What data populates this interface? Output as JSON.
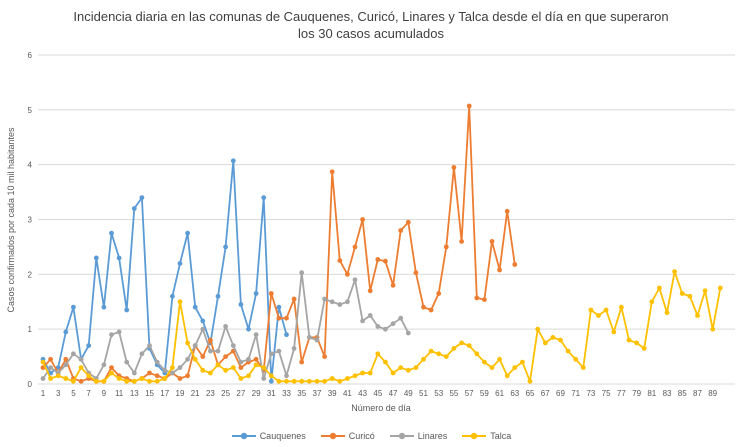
{
  "title": {
    "line1": "Incidencia diaria en las comunas de Cauquenes, Curicó, Linares y Talca desde el día en que superaron",
    "line2": "los 30 casos acumulados"
  },
  "axes": {
    "x_label": "Número de día",
    "y_label": "Casos confirmados por cada 10 mil habitantes",
    "y_ticks": [
      0,
      1,
      2,
      3,
      4,
      5,
      6
    ],
    "x_tick_days": [
      1,
      3,
      5,
      7,
      9,
      11,
      13,
      15,
      17,
      19,
      21,
      23,
      25,
      27,
      29,
      31,
      33,
      35,
      37,
      39,
      41,
      43,
      45,
      47,
      49,
      51,
      53,
      55,
      57,
      59,
      61,
      63,
      65,
      67,
      69,
      71,
      73,
      75,
      77,
      79,
      81,
      83,
      85,
      87,
      89
    ]
  },
  "colors": {
    "cauquenes": "#5B9BD5",
    "curico": "#ED7D31",
    "linares": "#A5A5A5",
    "talca": "#FFC000",
    "grid": "#d9d9d9",
    "tick_text": "#595959"
  },
  "chart_data": {
    "type": "line",
    "title": "Incidencia diaria en las comunas de Cauquenes, Curicó, Linares y Talca desde el día en que superaron los 30 casos acumulados",
    "xlabel": "Número de día",
    "ylabel": "Casos confirmados por cada 10 mil habitantes",
    "x_start": 1,
    "xlim": [
      1,
      90
    ],
    "ylim": [
      0,
      6
    ],
    "grid": "horizontal",
    "legend_position": "bottom",
    "marker": "circle",
    "series": [
      {
        "name": "Cauquenes",
        "color": "#5B9BD5",
        "values": [
          0.45,
          0.2,
          0.3,
          0.95,
          1.4,
          0.45,
          0.7,
          2.3,
          1.4,
          2.75,
          2.3,
          1.35,
          3.2,
          3.4,
          0.65,
          0.35,
          0.2,
          1.6,
          2.2,
          2.75,
          1.4,
          1.15,
          0.75,
          1.6,
          2.5,
          4.07,
          1.45,
          1.0,
          1.65,
          3.4,
          0.05,
          1.4,
          0.9
        ]
      },
      {
        "name": "Curicó",
        "color": "#ED7D31",
        "values": [
          0.3,
          0.45,
          0.2,
          0.45,
          0.1,
          0.05,
          0.1,
          0.05,
          0.05,
          0.3,
          0.15,
          0.1,
          0.05,
          0.1,
          0.2,
          0.15,
          0.1,
          0.2,
          0.1,
          0.15,
          0.7,
          0.5,
          0.8,
          0.35,
          0.5,
          0.6,
          0.3,
          0.4,
          0.45,
          0.25,
          1.65,
          1.2,
          1.2,
          1.55,
          0.4,
          0.85,
          0.85,
          0.5,
          3.87,
          2.25,
          2.0,
          2.5,
          3.0,
          1.7,
          2.27,
          2.24,
          1.8,
          2.8,
          2.95,
          2.03,
          1.4,
          1.35,
          1.65,
          2.5,
          3.95,
          2.6,
          5.07,
          1.57,
          1.54,
          2.6,
          2.08,
          3.15,
          2.18
        ]
      },
      {
        "name": "Linares",
        "color": "#A5A5A5",
        "values": [
          0.1,
          0.3,
          0.2,
          0.35,
          0.55,
          0.45,
          0.2,
          0.1,
          0.35,
          0.9,
          0.95,
          0.4,
          0.2,
          0.55,
          0.7,
          0.4,
          0.25,
          0.2,
          0.3,
          0.45,
          0.7,
          1.0,
          0.6,
          0.6,
          1.05,
          0.7,
          0.4,
          0.45,
          0.9,
          0.1,
          0.55,
          0.6,
          0.15,
          0.65,
          2.03,
          0.85,
          0.8,
          1.55,
          1.5,
          1.45,
          1.5,
          1.9,
          1.15,
          1.25,
          1.05,
          1.0,
          1.1,
          1.2,
          0.93
        ]
      },
      {
        "name": "Talca",
        "color": "#FFC000",
        "values": [
          0.4,
          0.1,
          0.15,
          0.1,
          0.05,
          0.3,
          0.15,
          0.05,
          0.05,
          0.2,
          0.1,
          0.05,
          0.05,
          0.1,
          0.05,
          0.05,
          0.1,
          0.3,
          1.5,
          0.75,
          0.45,
          0.25,
          0.2,
          0.35,
          0.25,
          0.3,
          0.1,
          0.15,
          0.35,
          0.3,
          0.15,
          0.05,
          0.05,
          0.05,
          0.05,
          0.05,
          0.05,
          0.05,
          0.1,
          0.05,
          0.1,
          0.15,
          0.2,
          0.2,
          0.55,
          0.4,
          0.2,
          0.3,
          0.25,
          0.3,
          0.45,
          0.6,
          0.55,
          0.5,
          0.65,
          0.75,
          0.7,
          0.55,
          0.4,
          0.3,
          0.45,
          0.15,
          0.3,
          0.4,
          0.05,
          1.0,
          0.75,
          0.85,
          0.8,
          0.6,
          0.45,
          0.3,
          1.35,
          1.25,
          1.35,
          0.95,
          1.4,
          0.8,
          0.75,
          0.65,
          1.5,
          1.75,
          1.3,
          2.05,
          1.65,
          1.6,
          1.25,
          1.7,
          1.0,
          1.75
        ]
      }
    ]
  }
}
